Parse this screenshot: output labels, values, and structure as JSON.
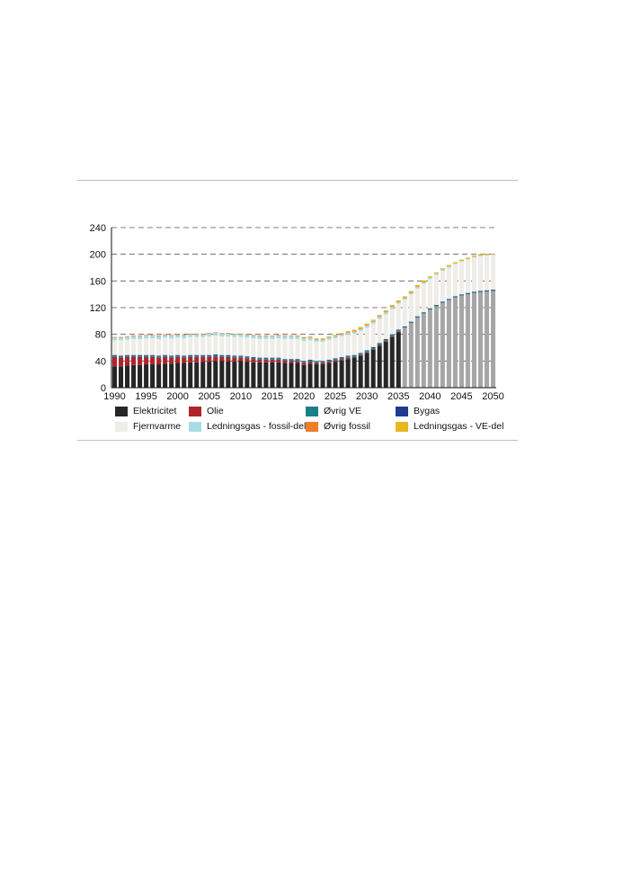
{
  "chart_data": {
    "type": "bar",
    "stacked": true,
    "title": "",
    "xlabel": "",
    "ylabel": "",
    "ylim": [
      0,
      240
    ],
    "yticks": [
      0,
      40,
      80,
      120,
      160,
      200,
      240
    ],
    "xticks": [
      "1990",
      "1995",
      "2000",
      "2005",
      "2010",
      "2015",
      "2020",
      "2025",
      "2030",
      "2035",
      "2040",
      "2045",
      "2050"
    ],
    "grid": "horizontal dashed",
    "legend_position": "bottom",
    "projection_starts": 2036,
    "projection_color_electricity": "#a6a6a6",
    "categories": [
      "1990",
      "1991",
      "1992",
      "1993",
      "1994",
      "1995",
      "1996",
      "1997",
      "1998",
      "1999",
      "2000",
      "2001",
      "2002",
      "2003",
      "2004",
      "2005",
      "2006",
      "2007",
      "2008",
      "2009",
      "2010",
      "2011",
      "2012",
      "2013",
      "2014",
      "2015",
      "2016",
      "2017",
      "2018",
      "2019",
      "2020",
      "2021",
      "2022",
      "2023",
      "2024",
      "2025",
      "2026",
      "2027",
      "2028",
      "2029",
      "2030",
      "2031",
      "2032",
      "2033",
      "2034",
      "2035",
      "2036",
      "2037",
      "2038",
      "2039",
      "2040",
      "2041",
      "2042",
      "2043",
      "2044",
      "2045",
      "2046",
      "2047",
      "2048",
      "2049",
      "2050"
    ],
    "series": [
      {
        "name": "Elektricitet",
        "color": "#262626",
        "values": [
          32,
          32,
          33,
          34,
          34,
          35,
          35,
          35,
          36,
          36,
          37,
          37,
          38,
          38,
          39,
          39,
          40,
          40,
          40,
          39,
          40,
          39,
          38,
          38,
          38,
          38,
          38,
          37,
          37,
          37,
          34,
          36,
          35,
          35,
          37,
          39,
          41,
          43,
          45,
          48,
          52,
          57,
          63,
          69,
          76,
          83,
          90,
          97,
          105,
          111,
          117,
          122,
          127,
          131,
          135,
          138,
          140,
          142,
          143,
          144,
          145
        ]
      },
      {
        "name": "Olie",
        "color": "#b0232a",
        "values": [
          14,
          13,
          13,
          12,
          12,
          11,
          11,
          10,
          10,
          9,
          9,
          8,
          8,
          8,
          7,
          7,
          7,
          6,
          6,
          6,
          5,
          5,
          5,
          4,
          4,
          4,
          4,
          3,
          3,
          3,
          3,
          3,
          2,
          2,
          2,
          2,
          2,
          2,
          1,
          1,
          1,
          1,
          1,
          1,
          1,
          1,
          0,
          0,
          0,
          0,
          0,
          0,
          0,
          0,
          0,
          0,
          0,
          0,
          0,
          0,
          0
        ]
      },
      {
        "name": "Øvrig VE",
        "color": "#1a7f86",
        "values": [
          2,
          2,
          2,
          2,
          2,
          2,
          2,
          2,
          2,
          2,
          2,
          2,
          2,
          2,
          2,
          2,
          2,
          2,
          2,
          2,
          2,
          2,
          2,
          2,
          2,
          2,
          2,
          2,
          2,
          2,
          2,
          2,
          2,
          2,
          2,
          2,
          2,
          2,
          2,
          2,
          2,
          2,
          2,
          2,
          2,
          2,
          1,
          1,
          1,
          1,
          1,
          1,
          1,
          1,
          1,
          1,
          1,
          1,
          1,
          1,
          1
        ]
      },
      {
        "name": "Bygas",
        "color": "#1f3b8f",
        "values": [
          1,
          1,
          1,
          1,
          1,
          1,
          1,
          1,
          1,
          1,
          1,
          1,
          1,
          1,
          1,
          1,
          1,
          1,
          1,
          1,
          1,
          1,
          1,
          1,
          1,
          1,
          1,
          1,
          1,
          1,
          1,
          1,
          1,
          1,
          1,
          1,
          1,
          1,
          1,
          1,
          1,
          1,
          1,
          1,
          1,
          1,
          1,
          1,
          1,
          1,
          1,
          1,
          1,
          1,
          1,
          1,
          1,
          1,
          1,
          1,
          1
        ]
      },
      {
        "name": "Fjernvarme",
        "color": "#eeede8",
        "values": [
          22,
          23,
          23,
          24,
          24,
          25,
          25,
          25,
          26,
          26,
          26,
          26,
          27,
          27,
          27,
          28,
          28,
          28,
          28,
          28,
          28,
          28,
          28,
          28,
          28,
          28,
          29,
          30,
          30,
          30,
          30,
          29,
          29,
          29,
          30,
          30,
          31,
          31,
          32,
          33,
          34,
          35,
          36,
          37,
          38,
          39,
          40,
          41,
          42,
          43,
          44,
          45,
          46,
          47,
          48,
          49,
          50,
          51,
          52,
          52,
          52
        ]
      },
      {
        "name": "Ledningsgas - fossil-del",
        "color": "#a8dce2",
        "values": [
          4,
          4,
          4,
          4,
          4,
          4,
          4,
          4,
          4,
          4,
          4,
          4,
          4,
          4,
          4,
          4,
          4,
          4,
          4,
          4,
          4,
          4,
          4,
          4,
          4,
          4,
          4,
          4,
          4,
          4,
          4,
          4,
          3,
          3,
          3,
          3,
          3,
          3,
          3,
          3,
          3,
          3,
          3,
          3,
          3,
          2,
          2,
          2,
          2,
          2,
          2,
          2,
          2,
          2,
          1,
          1,
          1,
          1,
          1,
          1,
          1
        ]
      },
      {
        "name": "Øvrig fossil",
        "color": "#ef7d2a",
        "values": [
          1,
          1,
          1,
          1,
          1,
          1,
          1,
          1,
          1,
          1,
          1,
          1,
          1,
          1,
          1,
          1,
          1,
          1,
          1,
          1,
          1,
          1,
          1,
          1,
          1,
          1,
          1,
          1,
          1,
          1,
          1,
          1,
          1,
          1,
          1,
          1,
          1,
          1,
          1,
          1,
          1,
          1,
          1,
          1,
          1,
          1,
          1,
          1,
          1,
          1,
          0,
          0,
          0,
          0,
          0,
          0,
          0,
          0,
          0,
          0,
          0
        ]
      },
      {
        "name": "Ledningsgas - VE-del",
        "color": "#e8b820",
        "values": [
          0,
          0,
          0,
          0,
          0,
          0,
          0,
          0,
          0,
          0,
          0,
          0,
          0,
          0,
          0,
          0,
          0,
          0,
          0,
          0,
          0,
          0,
          0,
          0,
          0,
          0,
          0,
          0,
          0,
          0,
          1,
          1,
          1,
          1,
          1,
          1,
          1,
          2,
          2,
          2,
          2,
          2,
          2,
          2,
          2,
          2,
          2,
          2,
          2,
          2,
          2,
          2,
          2,
          2,
          2,
          2,
          2,
          2,
          2,
          2,
          1
        ]
      }
    ]
  }
}
